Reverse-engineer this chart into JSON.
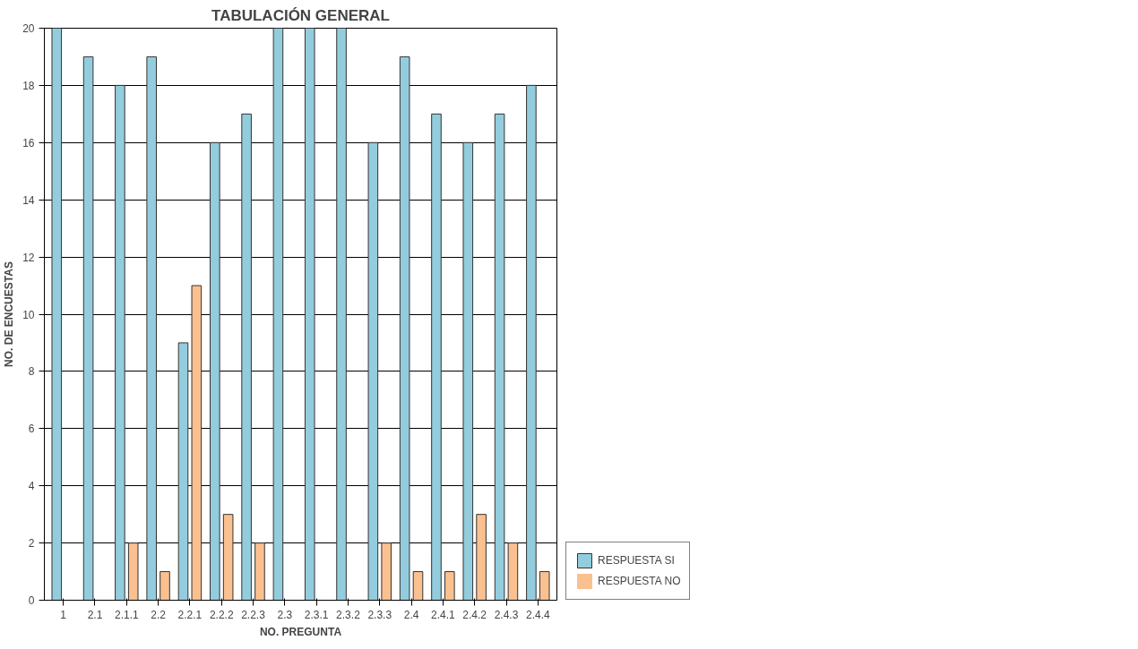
{
  "chart_data": {
    "type": "bar",
    "title": "TABULACIÓN GENERAL",
    "xlabel": "NO. PREGUNTA",
    "ylabel": "NO. DE ENCUESTAS",
    "categories": [
      "1",
      "2.1",
      "2.1.1",
      "2.2",
      "2.2.1",
      "2.2.2",
      "2.2.3",
      "2.3",
      "2.3.1",
      "2.3.2",
      "2.3.3",
      "2.4",
      "2.4.1",
      "2.4.2",
      "2.4.3",
      "2.4.4"
    ],
    "series": [
      {
        "name": "RESPUESTA SI",
        "color": "#93cddd",
        "values": [
          20,
          19,
          18,
          19,
          9,
          16,
          17,
          20,
          20,
          20,
          16,
          19,
          17,
          16,
          17,
          18
        ]
      },
      {
        "name": "RESPUESTA NO",
        "color": "#fac090",
        "values": [
          0,
          0,
          2,
          1,
          11,
          3,
          2,
          0,
          0,
          0,
          2,
          1,
          1,
          3,
          2,
          1
        ]
      }
    ],
    "ylim": [
      0,
      20
    ],
    "yticks": [
      0,
      2,
      4,
      6,
      8,
      10,
      12,
      14,
      16,
      18,
      20
    ],
    "grid": "y",
    "legend": "bottom right"
  }
}
